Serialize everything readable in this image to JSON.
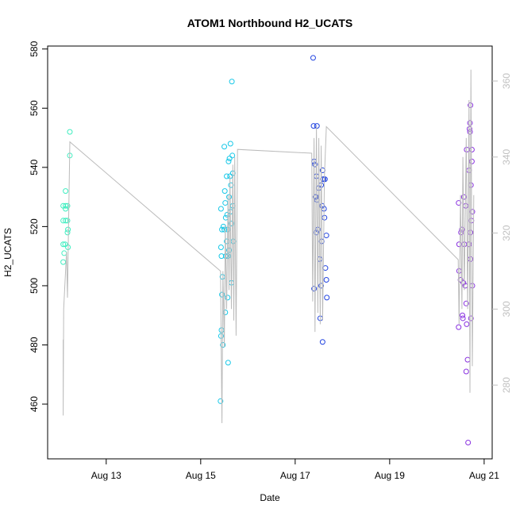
{
  "chart_data": {
    "type": "scatter",
    "title": "ATOM1 Northbound H2_UCATS",
    "x_label": "Date",
    "y_label": "H2_UCATS",
    "xlim": [
      11.76,
      21.17
    ],
    "xticks": [
      {
        "value": 13,
        "label": "Aug 13"
      },
      {
        "value": 15,
        "label": "Aug 15"
      },
      {
        "value": 17,
        "label": "Aug 17"
      },
      {
        "value": 19,
        "label": "Aug 19"
      },
      {
        "value": 21,
        "label": "Aug 21"
      }
    ],
    "ylim": [
      441.5,
      581
    ],
    "yticks": [
      460,
      480,
      500,
      520,
      540,
      560,
      580
    ],
    "y2lim": [
      260.6,
      369.2
    ],
    "y2ticks": [
      280,
      300,
      320,
      340,
      360
    ],
    "y2_color": "#c0c0c0",
    "series": [
      {
        "color": "#40eec0",
        "x": [
          12.09,
          12.14,
          12.18,
          12.09,
          12.14,
          12.09,
          12.13,
          12.11,
          12.09,
          12.14,
          12.18,
          12.18,
          12.19,
          12.19,
          12.14,
          12.23,
          12.23
        ],
        "values": [
          527,
          527,
          527,
          522,
          522,
          514,
          514,
          511,
          508,
          526,
          522,
          518,
          519,
          513,
          532,
          544,
          552
        ]
      },
      {
        "color": "#18c8e8",
        "x": [
          15.42,
          15.43,
          15.44,
          15.45,
          15.46,
          15.44,
          15.43,
          15.45,
          15.43,
          15.48,
          15.5,
          15.5,
          15.51,
          15.52,
          15.53,
          15.53,
          15.55,
          15.55,
          15.56,
          15.57,
          15.58,
          15.58,
          15.59,
          15.6,
          15.6,
          15.62,
          15.63,
          15.64,
          15.65,
          15.65,
          15.66,
          15.67,
          15.68,
          15.69,
          15.68,
          15.47,
          15.52,
          15.57,
          15.63,
          15.61
        ],
        "values": [
          461,
          483,
          485,
          497,
          503,
          510,
          513,
          519,
          526,
          520,
          519,
          547,
          532,
          528,
          523,
          510,
          515,
          537,
          524,
          496,
          474,
          510,
          542,
          530,
          512,
          537,
          548,
          534,
          521,
          501,
          569,
          544,
          538,
          515,
          527,
          480,
          491,
          519,
          525,
          543
        ]
      },
      {
        "color": "#2244e0",
        "x": [
          17.38,
          17.39,
          17.46,
          17.4,
          17.42,
          17.45,
          17.5,
          17.43,
          17.46,
          17.6,
          17.48,
          17.45,
          17.52,
          17.55,
          17.53,
          17.58,
          17.57,
          17.61,
          17.59,
          17.63,
          17.62,
          17.66,
          17.64,
          17.66,
          17.67,
          17.4,
          17.58,
          17.55,
          17.56,
          17.44
        ],
        "values": [
          577,
          554,
          554,
          542,
          541,
          537,
          533,
          530,
          529,
          536,
          519,
          518,
          509,
          500,
          489,
          481,
          527,
          526,
          536,
          536,
          523,
          517,
          506,
          502,
          496,
          499,
          539,
          534,
          515,
          530
        ]
      },
      {
        "color": "#8a32e0",
        "x": [
          20.46,
          20.47,
          20.47,
          20.5,
          20.51,
          20.53,
          20.46,
          20.55,
          20.54,
          20.6,
          20.58,
          20.57,
          20.61,
          20.56,
          20.62,
          20.63,
          20.65,
          20.62,
          20.66,
          20.63,
          20.68,
          20.72,
          20.7,
          20.69,
          20.7,
          20.71,
          20.74,
          20.74,
          20.75,
          20.73,
          20.71,
          20.68,
          20.71,
          20.75,
          20.72
        ],
        "values": [
          528,
          514,
          505,
          502,
          518,
          519,
          486,
          489,
          490,
          500,
          514,
          530,
          527,
          501,
          494,
          487,
          475,
          471,
          447,
          546,
          539,
          534,
          552,
          553,
          555,
          561,
          546,
          542,
          525,
          522,
          518,
          514,
          509,
          500,
          489
        ]
      },
      {
        "type": "line",
        "axis": "y2",
        "color": "#bbbbbb",
        "x": [
          12.09,
          12.09,
          12.1,
          12.12,
          12.14,
          12.16,
          12.18,
          12.2,
          12.23,
          15.42,
          15.43,
          15.45,
          15.47,
          15.5,
          15.52,
          15.55,
          15.58,
          15.6,
          15.62,
          15.65,
          15.68,
          15.7,
          15.72,
          15.75,
          15.78,
          17.35,
          17.37,
          17.4,
          17.42,
          17.45,
          17.48,
          17.5,
          17.53,
          17.55,
          17.58,
          17.62,
          17.66,
          20.45,
          20.47,
          20.5,
          20.53,
          20.55,
          20.58,
          20.62,
          20.65,
          20.68,
          20.7,
          20.72,
          20.75,
          20.78
        ],
        "values": [
          292,
          272,
          300,
          305,
          310,
          315,
          303,
          320,
          344,
          310,
          296,
          270,
          310,
          290,
          322,
          300,
          330,
          305,
          335,
          300,
          338,
          297,
          340,
          293,
          342,
          341,
          302,
          345,
          294,
          348,
          299,
          345,
          296,
          343,
          297,
          335,
          348,
          313,
          296,
          330,
          300,
          340,
          305,
          345,
          300,
          355,
          278,
          363,
          285,
          330
        ]
      }
    ]
  }
}
